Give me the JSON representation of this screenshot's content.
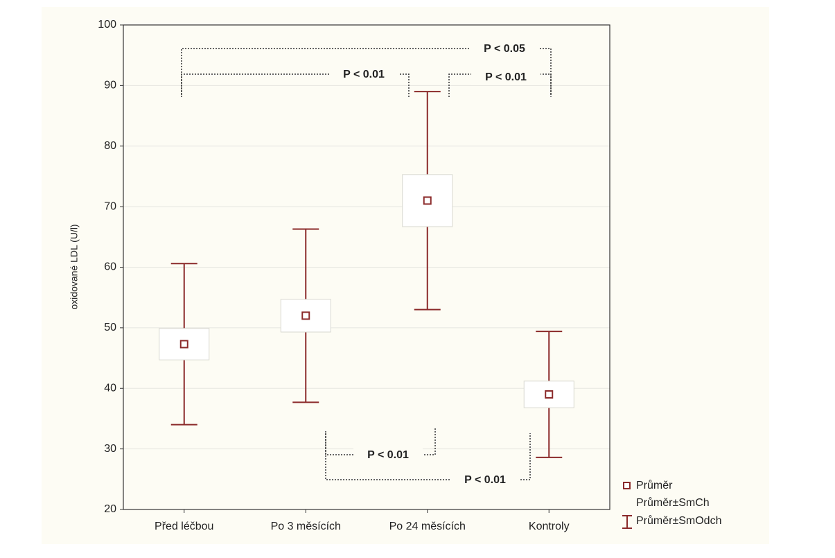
{
  "chart_data": {
    "type": "errorbar",
    "y_label": "oxidované LDL (U/l)",
    "categories": [
      "Před léčbou",
      "Po 3 měsících",
      "Po 24 měsících",
      "Kontroly"
    ],
    "values": [
      47.3,
      52,
      71,
      39
    ],
    "se": [
      2.6,
      2.7,
      4.3,
      2.2
    ],
    "sd": [
      13.3,
      14.3,
      18,
      10.4
    ],
    "color": "#8b2a2a",
    "ylim": [
      20,
      100
    ],
    "yticks": [
      20,
      30,
      40,
      50,
      60,
      70,
      80,
      90,
      100
    ],
    "grid": true,
    "legend": [
      "Průměr",
      "Průměr±SmCh",
      "Průměr±SmOdch"
    ],
    "annotations": [
      "P < 0.05",
      "P < 0.01",
      "P < 0.01",
      "P < 0.01",
      "P < 0.01"
    ]
  }
}
